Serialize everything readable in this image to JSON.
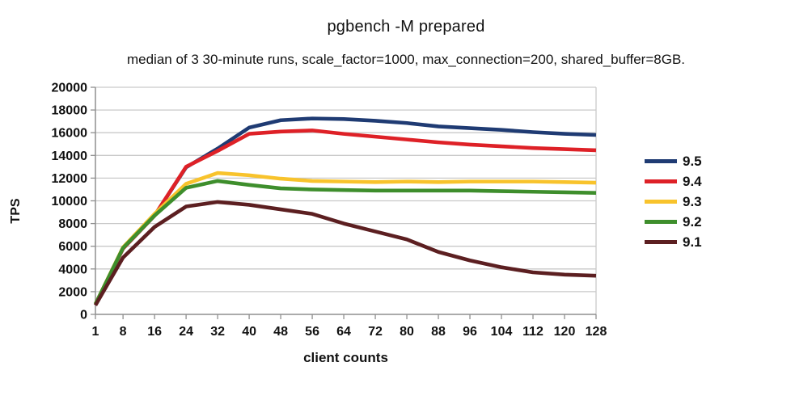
{
  "title": "pgbench -M prepared",
  "subtitle": "median of 3 30-minute runs, scale_factor=1000, max_connection=200, shared_buffer=8GB.",
  "chart_data": {
    "type": "line",
    "title": "pgbench -M prepared",
    "subtitle": "median of 3 30-minute runs, scale_factor=1000, max_connection=200, shared_buffer=8GB.",
    "xlabel": "client counts",
    "ylabel": "TPS",
    "x": [
      1,
      8,
      16,
      24,
      32,
      40,
      48,
      56,
      64,
      72,
      80,
      88,
      96,
      104,
      112,
      120,
      128
    ],
    "xticks": [
      "1",
      "8",
      "16",
      "24",
      "32",
      "40",
      "48",
      "56",
      "64",
      "72",
      "80",
      "88",
      "96",
      "104",
      "112",
      "120",
      "128"
    ],
    "yticks": [
      0,
      2000,
      4000,
      6000,
      8000,
      10000,
      12000,
      14000,
      16000,
      18000,
      20000
    ],
    "xlim": [
      1,
      128
    ],
    "ylim": [
      0,
      20000
    ],
    "grid": "horizontal",
    "legend_position": "right",
    "series": [
      {
        "name": "9.5",
        "color": "#1F3B73",
        "values": [
          900,
          5800,
          8700,
          12950,
          14600,
          16450,
          17100,
          17250,
          17200,
          17050,
          16850,
          16550,
          16400,
          16250,
          16050,
          15900,
          15800
        ]
      },
      {
        "name": "9.4",
        "color": "#DE2127",
        "values": [
          900,
          5800,
          8700,
          13000,
          14400,
          15900,
          16100,
          16200,
          15900,
          15650,
          15400,
          15150,
          14950,
          14800,
          14650,
          14550,
          14450
        ]
      },
      {
        "name": "9.3",
        "color": "#F8C32C",
        "values": [
          900,
          5900,
          8850,
          11500,
          12450,
          12250,
          11950,
          11750,
          11700,
          11650,
          11700,
          11650,
          11700,
          11700,
          11700,
          11650,
          11600
        ]
      },
      {
        "name": "9.2",
        "color": "#3E8E2C",
        "values": [
          900,
          5850,
          8700,
          11150,
          11750,
          11400,
          11100,
          11000,
          10950,
          10900,
          10900,
          10900,
          10900,
          10850,
          10800,
          10750,
          10700
        ]
      },
      {
        "name": "9.1",
        "color": "#5C1F21",
        "values": [
          800,
          5000,
          7700,
          9500,
          9900,
          9650,
          9250,
          8850,
          8000,
          7300,
          6600,
          5500,
          4750,
          4150,
          3700,
          3500,
          3400
        ]
      }
    ]
  },
  "colors": {
    "background": "#FFFFFF",
    "grid": "#C9C9C9",
    "axis": "#8F8F8F",
    "text": "#111111"
  }
}
